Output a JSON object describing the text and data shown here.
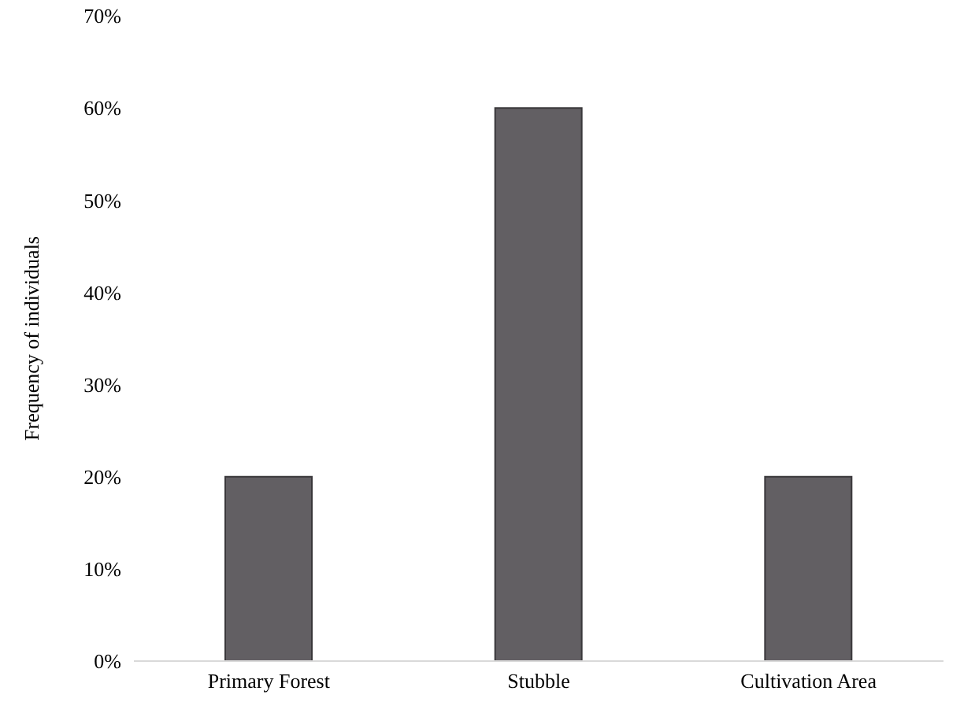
{
  "chart_data": {
    "type": "bar",
    "ylabel": "Frequency of individuals",
    "categories": [
      "Primary Forest",
      "Stubble",
      "Cultivation Area"
    ],
    "values": [
      20,
      60,
      20
    ],
    "color": "#625f63",
    "ylim": [
      0,
      70
    ],
    "yticks": [
      {
        "value": 0,
        "label": "0%"
      },
      {
        "value": 10,
        "label": "10%"
      },
      {
        "value": 20,
        "label": "20%"
      },
      {
        "value": 30,
        "label": "30%"
      },
      {
        "value": 40,
        "label": "40%"
      },
      {
        "value": 50,
        "label": "50%"
      },
      {
        "value": 60,
        "label": "60%"
      },
      {
        "value": 70,
        "label": "70%"
      }
    ],
    "grid": false,
    "legend": false
  }
}
